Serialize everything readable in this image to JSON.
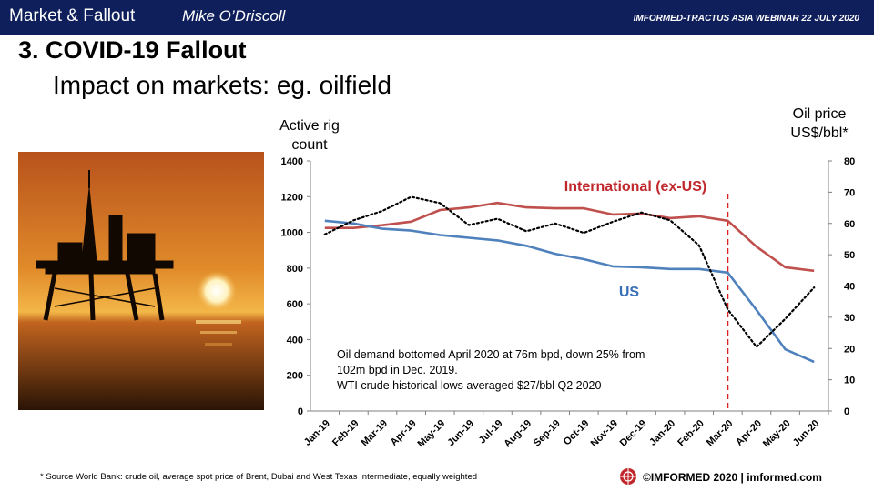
{
  "header": {
    "left_title": "Market & Fallout",
    "author": "Mike O’Driscoll",
    "event": "IMFORMED-TRACTUS ASIA WEBINAR 22 JULY 2020"
  },
  "slide": {
    "title": "3. COVID-19 Fallout",
    "subtitle": "Impact on markets: eg. oilfield"
  },
  "chart_data": {
    "type": "line",
    "categories": [
      "Jan-19",
      "Feb-19",
      "Mar-19",
      "Apr-19",
      "May-19",
      "Jun-19",
      "Jul-19",
      "Aug-19",
      "Sep-19",
      "Oct-19",
      "Nov-19",
      "Dec-19",
      "Jan-20",
      "Feb-20",
      "Mar-20",
      "Apr-20",
      "May-20",
      "Jun-20"
    ],
    "ylabel_left": [
      "Active rig",
      "count"
    ],
    "ylabel_right": [
      "Oil price",
      "US$/bbl*"
    ],
    "ylim_left": [
      0,
      1400
    ],
    "ylim_right": [
      0,
      80
    ],
    "yticks_left": [
      "0",
      "200",
      "400",
      "600",
      "800",
      "1000",
      "1200",
      "1400"
    ],
    "yticks_right": [
      "0",
      "10",
      "20",
      "30",
      "40",
      "50",
      "60",
      "70",
      "80"
    ],
    "series": [
      {
        "name": "International (ex-US)",
        "axis": "left",
        "color": "#c0504d",
        "style": "solid",
        "values": [
          1025,
          1025,
          1040,
          1060,
          1125,
          1140,
          1165,
          1140,
          1135,
          1135,
          1100,
          1105,
          1080,
          1090,
          1065,
          920,
          805,
          785
        ]
      },
      {
        "name": "US",
        "axis": "left",
        "color": "#4f81bd",
        "style": "solid",
        "values": [
          1065,
          1050,
          1020,
          1010,
          985,
          970,
          955,
          925,
          880,
          850,
          810,
          805,
          795,
          795,
          775,
          565,
          345,
          275
        ]
      },
      {
        "axis": "right",
        "color": "#000000",
        "style": "dotted",
        "values": [
          56.5,
          61,
          64,
          68.5,
          66.5,
          59.5,
          61.5,
          57.5,
          60,
          57,
          60.5,
          63.5,
          61,
          53,
          32.5,
          20.5,
          29.5,
          39.5
        ]
      }
    ],
    "marker": {
      "category": "Mar-20",
      "color": "#e02020",
      "style": "dashed"
    },
    "annotations": [
      "Oil demand bottomed April  2020 at 76m bpd, down 25% from",
      "102m bpd in Dec. 2019.",
      "WTI crude historical lows averaged $27/bbl Q2 2020"
    ],
    "grid": false
  },
  "footer": {
    "footnote": "* Source World Bank: crude oil,  average spot price of Brent, Dubai and West Texas Intermediate,  equally weighted",
    "brand": "©IMFORMED  2020  | imformed.com",
    "logo_icon": "imformed-logo-icon"
  },
  "photo": {
    "icon": "offshore-oil-rig-sunset-photo"
  }
}
